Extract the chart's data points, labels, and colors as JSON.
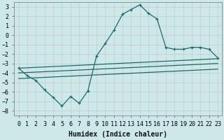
{
  "xlabel": "Humidex (Indice chaleur)",
  "background_color": "#cce8e8",
  "grid_color": "#b0d8d8",
  "line_color": "#1a6b6b",
  "xlim": [
    -0.5,
    23.5
  ],
  "ylim": [
    -8.5,
    3.5
  ],
  "xticks": [
    0,
    1,
    2,
    3,
    4,
    5,
    6,
    7,
    8,
    9,
    10,
    11,
    12,
    13,
    14,
    15,
    16,
    17,
    18,
    19,
    20,
    21,
    22,
    23
  ],
  "yticks": [
    -8,
    -7,
    -6,
    -5,
    -4,
    -3,
    -2,
    -1,
    0,
    1,
    2,
    3
  ],
  "curve1_x": [
    0,
    1,
    2,
    3,
    4,
    5,
    6,
    7,
    8,
    9,
    10,
    11,
    12,
    13,
    14,
    15,
    16,
    17,
    18,
    19,
    20,
    21,
    22,
    23
  ],
  "curve1_y": [
    -3.5,
    -4.3,
    -4.8,
    -5.8,
    -6.6,
    -7.5,
    -6.5,
    -7.2,
    -5.9,
    -2.2,
    -0.9,
    0.5,
    2.2,
    2.7,
    3.2,
    2.3,
    1.7,
    -1.3,
    -1.5,
    -1.5,
    -1.3,
    -1.3,
    -1.5,
    -2.4
  ],
  "curve2_x": [
    0,
    23
  ],
  "curve2_y": [
    -3.5,
    -2.5
  ],
  "curve3_x": [
    0,
    23
  ],
  "curve3_y": [
    -4.0,
    -3.0
  ],
  "curve4_x": [
    0,
    23
  ],
  "curve4_y": [
    -4.6,
    -3.6
  ],
  "xlabel_fontsize": 7,
  "tick_fontsize": 6
}
